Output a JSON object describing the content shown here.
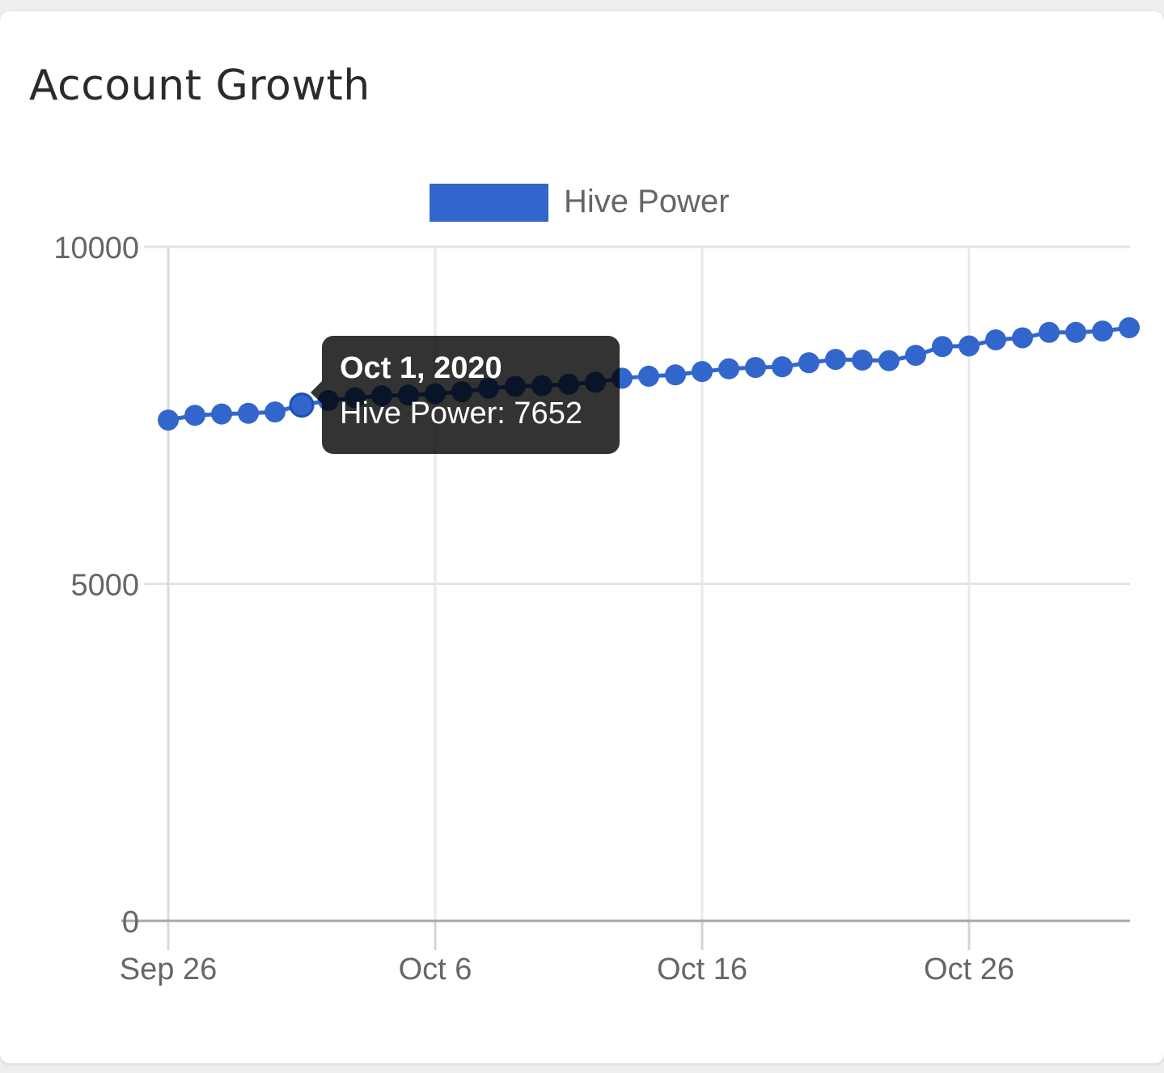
{
  "card": {
    "title": "Account Growth"
  },
  "tooltip": {
    "title": "Oct 1, 2020",
    "series_label": "Hive Power",
    "separator": ": ",
    "value": "7652"
  },
  "chart_data": {
    "type": "line",
    "title": "",
    "xlabel": "",
    "ylabel": "",
    "legend_position": "top-center",
    "grid": true,
    "y_ticks": [
      "0",
      "5000",
      "10000"
    ],
    "y_tick_values": [
      0,
      5000,
      10000
    ],
    "ylim": [
      0,
      10000
    ],
    "x_ticks": [
      "Sep 26",
      "Oct 6",
      "Oct 16",
      "Oct 26"
    ],
    "x_tick_dates": [
      "2020-09-26",
      "2020-10-06",
      "2020-10-16",
      "2020-10-26"
    ],
    "xlim": [
      "2020-09-26",
      "2020-11-01"
    ],
    "highlighted_date": "2020-10-01",
    "series": [
      {
        "name": "Hive Power",
        "color": "#3366cc",
        "points": [
          {
            "x": "2020-09-26",
            "y": 7430
          },
          {
            "x": "2020-09-27",
            "y": 7500
          },
          {
            "x": "2020-09-28",
            "y": 7520
          },
          {
            "x": "2020-09-29",
            "y": 7530
          },
          {
            "x": "2020-09-30",
            "y": 7550
          },
          {
            "x": "2020-10-01",
            "y": 7652
          },
          {
            "x": "2020-10-02",
            "y": 7720
          },
          {
            "x": "2020-10-03",
            "y": 7760
          },
          {
            "x": "2020-10-04",
            "y": 7790
          },
          {
            "x": "2020-10-05",
            "y": 7800
          },
          {
            "x": "2020-10-06",
            "y": 7820
          },
          {
            "x": "2020-10-07",
            "y": 7850
          },
          {
            "x": "2020-10-08",
            "y": 7900
          },
          {
            "x": "2020-10-09",
            "y": 7930
          },
          {
            "x": "2020-10-10",
            "y": 7940
          },
          {
            "x": "2020-10-11",
            "y": 7960
          },
          {
            "x": "2020-10-12",
            "y": 7990
          },
          {
            "x": "2020-10-13",
            "y": 8050
          },
          {
            "x": "2020-10-14",
            "y": 8080
          },
          {
            "x": "2020-10-15",
            "y": 8100
          },
          {
            "x": "2020-10-16",
            "y": 8150
          },
          {
            "x": "2020-10-17",
            "y": 8190
          },
          {
            "x": "2020-10-18",
            "y": 8210
          },
          {
            "x": "2020-10-19",
            "y": 8220
          },
          {
            "x": "2020-10-20",
            "y": 8280
          },
          {
            "x": "2020-10-21",
            "y": 8330
          },
          {
            "x": "2020-10-22",
            "y": 8320
          },
          {
            "x": "2020-10-23",
            "y": 8310
          },
          {
            "x": "2020-10-24",
            "y": 8390
          },
          {
            "x": "2020-10-25",
            "y": 8520
          },
          {
            "x": "2020-10-26",
            "y": 8530
          },
          {
            "x": "2020-10-27",
            "y": 8620
          },
          {
            "x": "2020-10-28",
            "y": 8650
          },
          {
            "x": "2020-10-29",
            "y": 8730
          },
          {
            "x": "2020-10-30",
            "y": 8730
          },
          {
            "x": "2020-10-31",
            "y": 8750
          },
          {
            "x": "2020-11-01",
            "y": 8800
          }
        ]
      }
    ]
  }
}
